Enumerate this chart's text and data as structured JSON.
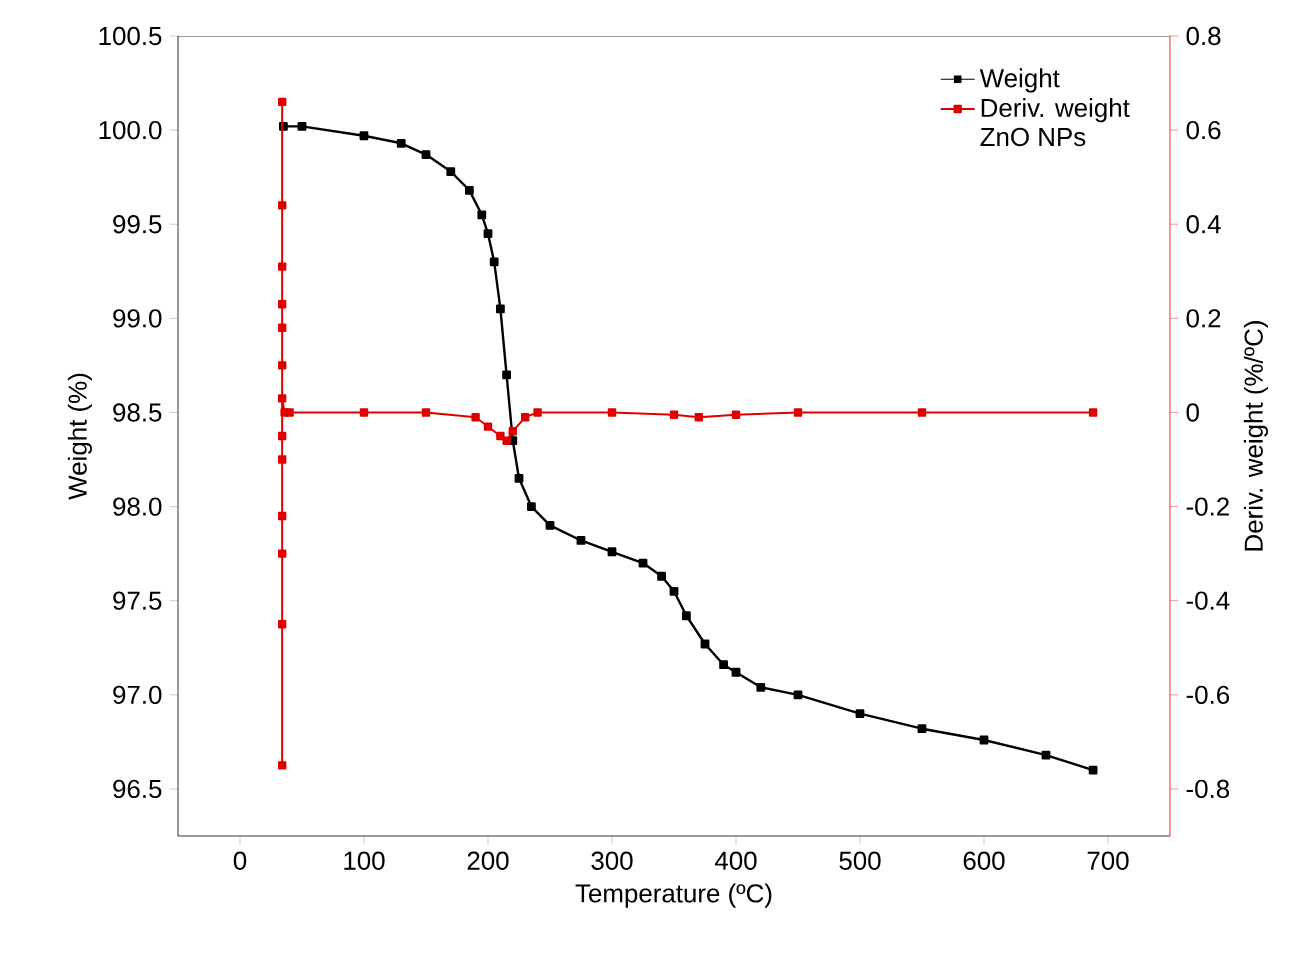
{
  "chart_data": {
    "type": "line",
    "xlabel": "Temperature (ºC)",
    "ylabel": "Weight (%)",
    "y2label": "Deriv. weight (%/ºC)",
    "xlim": [
      -50,
      750
    ],
    "xticks": [
      0,
      100,
      200,
      300,
      400,
      500,
      600,
      700
    ],
    "ylim": [
      96.25,
      100.5
    ],
    "yticks": [
      {
        "value": 96.5,
        "label": "96.5"
      },
      {
        "value": 97,
        "label": "97.0"
      },
      {
        "value": 97.5,
        "label": "97.5"
      },
      {
        "value": 98,
        "label": "98.0"
      },
      {
        "value": 98.5,
        "label": "98.5"
      },
      {
        "value": 99,
        "label": "99.0"
      },
      {
        "value": 99.5,
        "label": "99.5"
      },
      {
        "value": 100,
        "label": "100.0"
      },
      {
        "value": 100.5,
        "label": "100.5"
      }
    ],
    "y2lim": [
      -0.9,
      0.8
    ],
    "y2ticks": [
      -0.8,
      -0.6,
      -0.4,
      -0.2,
      0,
      0.2,
      0.4,
      0.6,
      0.8
    ],
    "legend": "top right",
    "marker": "square",
    "grid": false,
    "annotations": [
      "ZnO NPs"
    ],
    "series": [
      {
        "name": "Weight",
        "color": "#000000",
        "x": [
          35,
          50,
          100,
          130,
          150,
          170,
          185,
          195,
          200,
          205,
          210,
          215,
          220,
          225,
          235,
          250,
          275,
          300,
          325,
          340,
          350,
          360,
          375,
          390,
          400,
          420,
          450,
          500,
          550,
          600,
          650,
          688
        ],
        "values": [
          100.02,
          100.02,
          99.97,
          99.93,
          99.87,
          99.78,
          99.68,
          99.55,
          99.45,
          99.3,
          99.05,
          98.7,
          98.35,
          98.15,
          98.0,
          97.9,
          97.82,
          97.76,
          97.7,
          97.63,
          97.55,
          97.42,
          97.27,
          97.16,
          97.12,
          97.04,
          97.0,
          96.9,
          96.82,
          96.76,
          96.68,
          96.6
        ]
      },
      {
        "name": "Deriv. weight",
        "color": "#e00000",
        "axis": "y2",
        "x": [
          34,
          34,
          34,
          34,
          34,
          34,
          34,
          34,
          34,
          34,
          34,
          34,
          34,
          36,
          40,
          100,
          150,
          190,
          200,
          210,
          215,
          220,
          230,
          240,
          300,
          350,
          370,
          400,
          450,
          550,
          688
        ],
        "values": [
          0.66,
          -0.75,
          0.44,
          -0.45,
          0.31,
          -0.3,
          0.23,
          -0.22,
          0.18,
          -0.1,
          0.1,
          -0.05,
          0.03,
          0,
          0,
          0,
          0,
          -0.01,
          -0.03,
          -0.05,
          -0.06,
          -0.04,
          -0.01,
          0,
          0,
          -0.005,
          -0.01,
          -0.005,
          0,
          0,
          0
        ]
      }
    ]
  }
}
